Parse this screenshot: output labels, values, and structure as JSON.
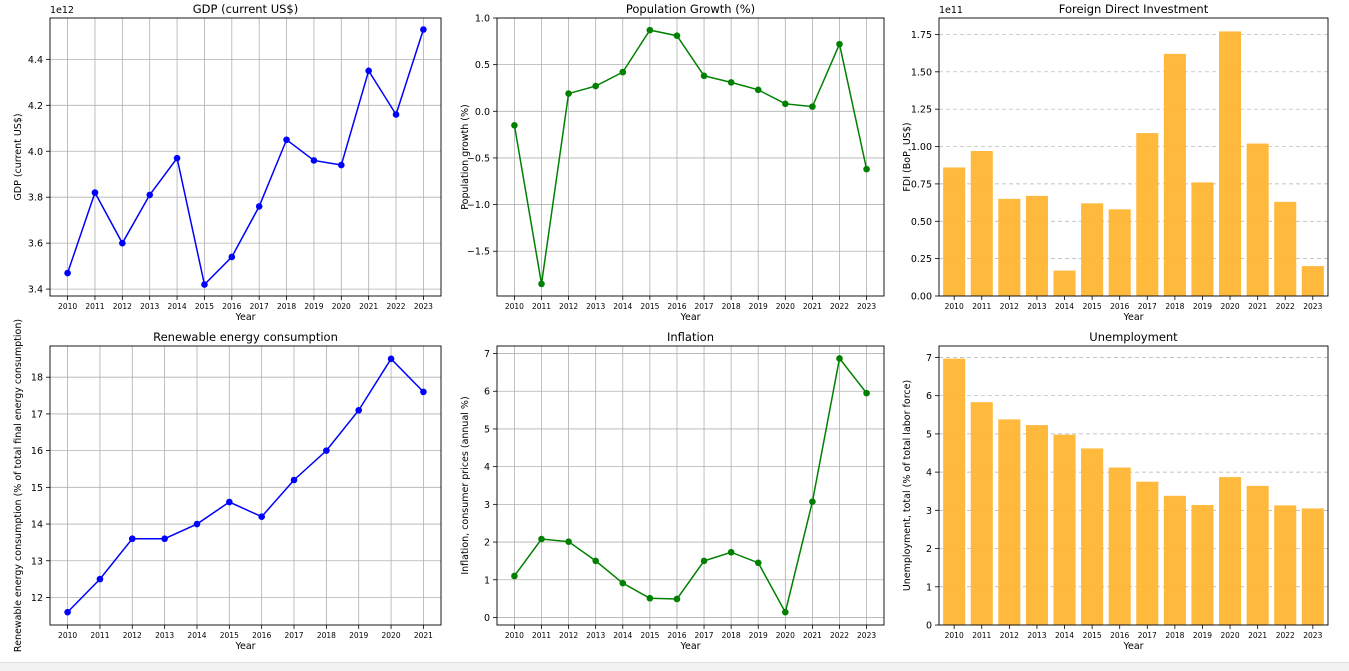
{
  "chart_data": [
    {
      "type": "line",
      "title": "GDP (current US$)",
      "xlabel": "Year",
      "ylabel": "GDP (current US$)",
      "offset_label": "1e12",
      "x": [
        2010,
        2011,
        2012,
        2013,
        2014,
        2015,
        2016,
        2017,
        2018,
        2019,
        2020,
        2021,
        2022,
        2023
      ],
      "values": [
        3.47,
        3.82,
        3.6,
        3.81,
        3.97,
        3.42,
        3.54,
        3.76,
        4.05,
        3.96,
        3.94,
        4.35,
        4.16,
        4.53
      ],
      "yticks": [
        3.4,
        3.6,
        3.8,
        4.0,
        4.2,
        4.4
      ],
      "ytick_labels": [
        "3.4",
        "3.6",
        "3.8",
        "4.0",
        "4.2",
        "4.4"
      ],
      "ylim": [
        3.37,
        4.58
      ],
      "color": "#0000ff",
      "grid": "both"
    },
    {
      "type": "line",
      "title": "Population Growth (%)",
      "xlabel": "Year",
      "ylabel": "Population growth (%)",
      "offset_label": "",
      "x": [
        2010,
        2011,
        2012,
        2013,
        2014,
        2015,
        2016,
        2017,
        2018,
        2019,
        2020,
        2021,
        2022,
        2023
      ],
      "values": [
        -0.15,
        -1.85,
        0.19,
        0.27,
        0.42,
        0.87,
        0.81,
        0.38,
        0.31,
        0.23,
        0.08,
        0.05,
        0.72,
        -0.62
      ],
      "yticks": [
        -1.5,
        -1.0,
        -0.5,
        0.0,
        0.5,
        1.0
      ],
      "ytick_labels": [
        "−1.5",
        "−1.0",
        "−0.5",
        "0.0",
        "0.5",
        "1.0"
      ],
      "ylim": [
        -1.98,
        1.0
      ],
      "color": "#008000",
      "grid": "both"
    },
    {
      "type": "bar",
      "title": "Foreign Direct Investment",
      "xlabel": "Year",
      "ylabel": "FDI (BoP, US$)",
      "offset_label": "1e11",
      "x": [
        2010,
        2011,
        2012,
        2013,
        2014,
        2015,
        2016,
        2017,
        2018,
        2019,
        2020,
        2021,
        2022,
        2023
      ],
      "values": [
        0.86,
        0.97,
        0.65,
        0.67,
        0.17,
        0.62,
        0.58,
        1.09,
        1.62,
        0.76,
        1.77,
        1.02,
        0.63,
        0.2
      ],
      "yticks": [
        0.0,
        0.25,
        0.5,
        0.75,
        1.0,
        1.25,
        1.5,
        1.75
      ],
      "ytick_labels": [
        "0.00",
        "0.25",
        "0.50",
        "0.75",
        "1.00",
        "1.25",
        "1.50",
        "1.75"
      ],
      "ylim": [
        0,
        1.86
      ],
      "color": "#ffb533",
      "grid": "y"
    },
    {
      "type": "line",
      "title": "Renewable energy consumption",
      "xlabel": "Year",
      "ylabel": "Renewable energy consumption (% of total final energy consumption)",
      "offset_label": "",
      "x": [
        2010,
        2011,
        2012,
        2013,
        2014,
        2015,
        2016,
        2017,
        2018,
        2019,
        2020,
        2021
      ],
      "values": [
        11.6,
        12.5,
        13.6,
        13.6,
        14.0,
        14.6,
        14.2,
        15.2,
        16.0,
        17.1,
        18.5,
        17.6
      ],
      "yticks": [
        12,
        13,
        14,
        15,
        16,
        17,
        18
      ],
      "ytick_labels": [
        "12",
        "13",
        "14",
        "15",
        "16",
        "17",
        "18"
      ],
      "ylim": [
        11.25,
        18.85
      ],
      "color": "#0000ff",
      "grid": "both"
    },
    {
      "type": "line",
      "title": "Inflation",
      "xlabel": "Year",
      "ylabel": "Inflation, consumer prices (annual %)",
      "offset_label": "",
      "x": [
        2010,
        2011,
        2012,
        2013,
        2014,
        2015,
        2016,
        2017,
        2018,
        2019,
        2020,
        2021,
        2022,
        2023
      ],
      "values": [
        1.1,
        2.08,
        2.01,
        1.5,
        0.91,
        0.51,
        0.49,
        1.5,
        1.73,
        1.45,
        0.14,
        3.07,
        6.87,
        5.95
      ],
      "yticks": [
        0,
        1,
        2,
        3,
        4,
        5,
        6,
        7
      ],
      "ytick_labels": [
        "0",
        "1",
        "2",
        "3",
        "4",
        "5",
        "6",
        "7"
      ],
      "ylim": [
        -0.2,
        7.2
      ],
      "color": "#008000",
      "grid": "both"
    },
    {
      "type": "bar",
      "title": "Unemployment",
      "xlabel": "Year",
      "ylabel": "Unemployment, total (% of total labor force)",
      "offset_label": "",
      "x": [
        2010,
        2011,
        2012,
        2013,
        2014,
        2015,
        2016,
        2017,
        2018,
        2019,
        2020,
        2021,
        2022,
        2023
      ],
      "values": [
        6.97,
        5.83,
        5.38,
        5.23,
        4.98,
        4.62,
        4.12,
        3.75,
        3.38,
        3.14,
        3.87,
        3.64,
        3.13,
        3.05
      ],
      "yticks": [
        0,
        1,
        2,
        3,
        4,
        5,
        6,
        7
      ],
      "ytick_labels": [
        "0",
        "1",
        "2",
        "3",
        "4",
        "5",
        "6",
        "7"
      ],
      "ylim": [
        0,
        7.3
      ],
      "color": "#ffb533",
      "grid": "y"
    }
  ]
}
